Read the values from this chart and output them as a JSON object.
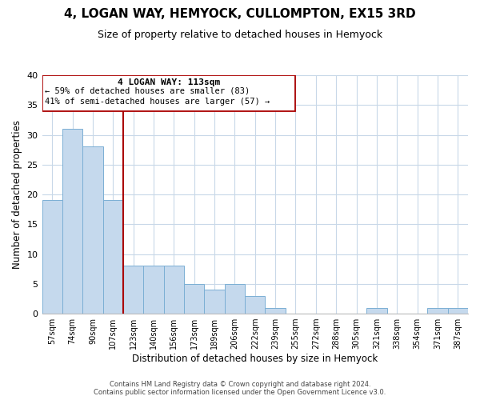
{
  "title": "4, LOGAN WAY, HEMYOCK, CULLOMPTON, EX15 3RD",
  "subtitle": "Size of property relative to detached houses in Hemyock",
  "xlabel": "Distribution of detached houses by size in Hemyock",
  "ylabel": "Number of detached properties",
  "bin_labels": [
    "57sqm",
    "74sqm",
    "90sqm",
    "107sqm",
    "123sqm",
    "140sqm",
    "156sqm",
    "173sqm",
    "189sqm",
    "206sqm",
    "222sqm",
    "239sqm",
    "255sqm",
    "272sqm",
    "288sqm",
    "305sqm",
    "321sqm",
    "338sqm",
    "354sqm",
    "371sqm",
    "387sqm"
  ],
  "bar_values": [
    19,
    31,
    28,
    19,
    8,
    8,
    8,
    5,
    4,
    5,
    3,
    1,
    0,
    0,
    0,
    0,
    1,
    0,
    0,
    1,
    1
  ],
  "bar_color": "#c5d9ed",
  "bar_edge_color": "#7bafd4",
  "annotation_text_line1": "4 LOGAN WAY: 113sqm",
  "annotation_text_line2": "← 59% of detached houses are smaller (83)",
  "annotation_text_line3": "41% of semi-detached houses are larger (57) →",
  "annotation_box_color": "#ffffff",
  "annotation_box_edge": "#aa0000",
  "vline_color": "#aa0000",
  "ylim": [
    0,
    40
  ],
  "yticks": [
    0,
    5,
    10,
    15,
    20,
    25,
    30,
    35,
    40
  ],
  "bg_color": "#ffffff",
  "grid_color": "#c8d8e8",
  "title_fontsize": 11,
  "subtitle_fontsize": 9,
  "footer_line1": "Contains HM Land Registry data © Crown copyright and database right 2024.",
  "footer_line2": "Contains public sector information licensed under the Open Government Licence v3.0."
}
